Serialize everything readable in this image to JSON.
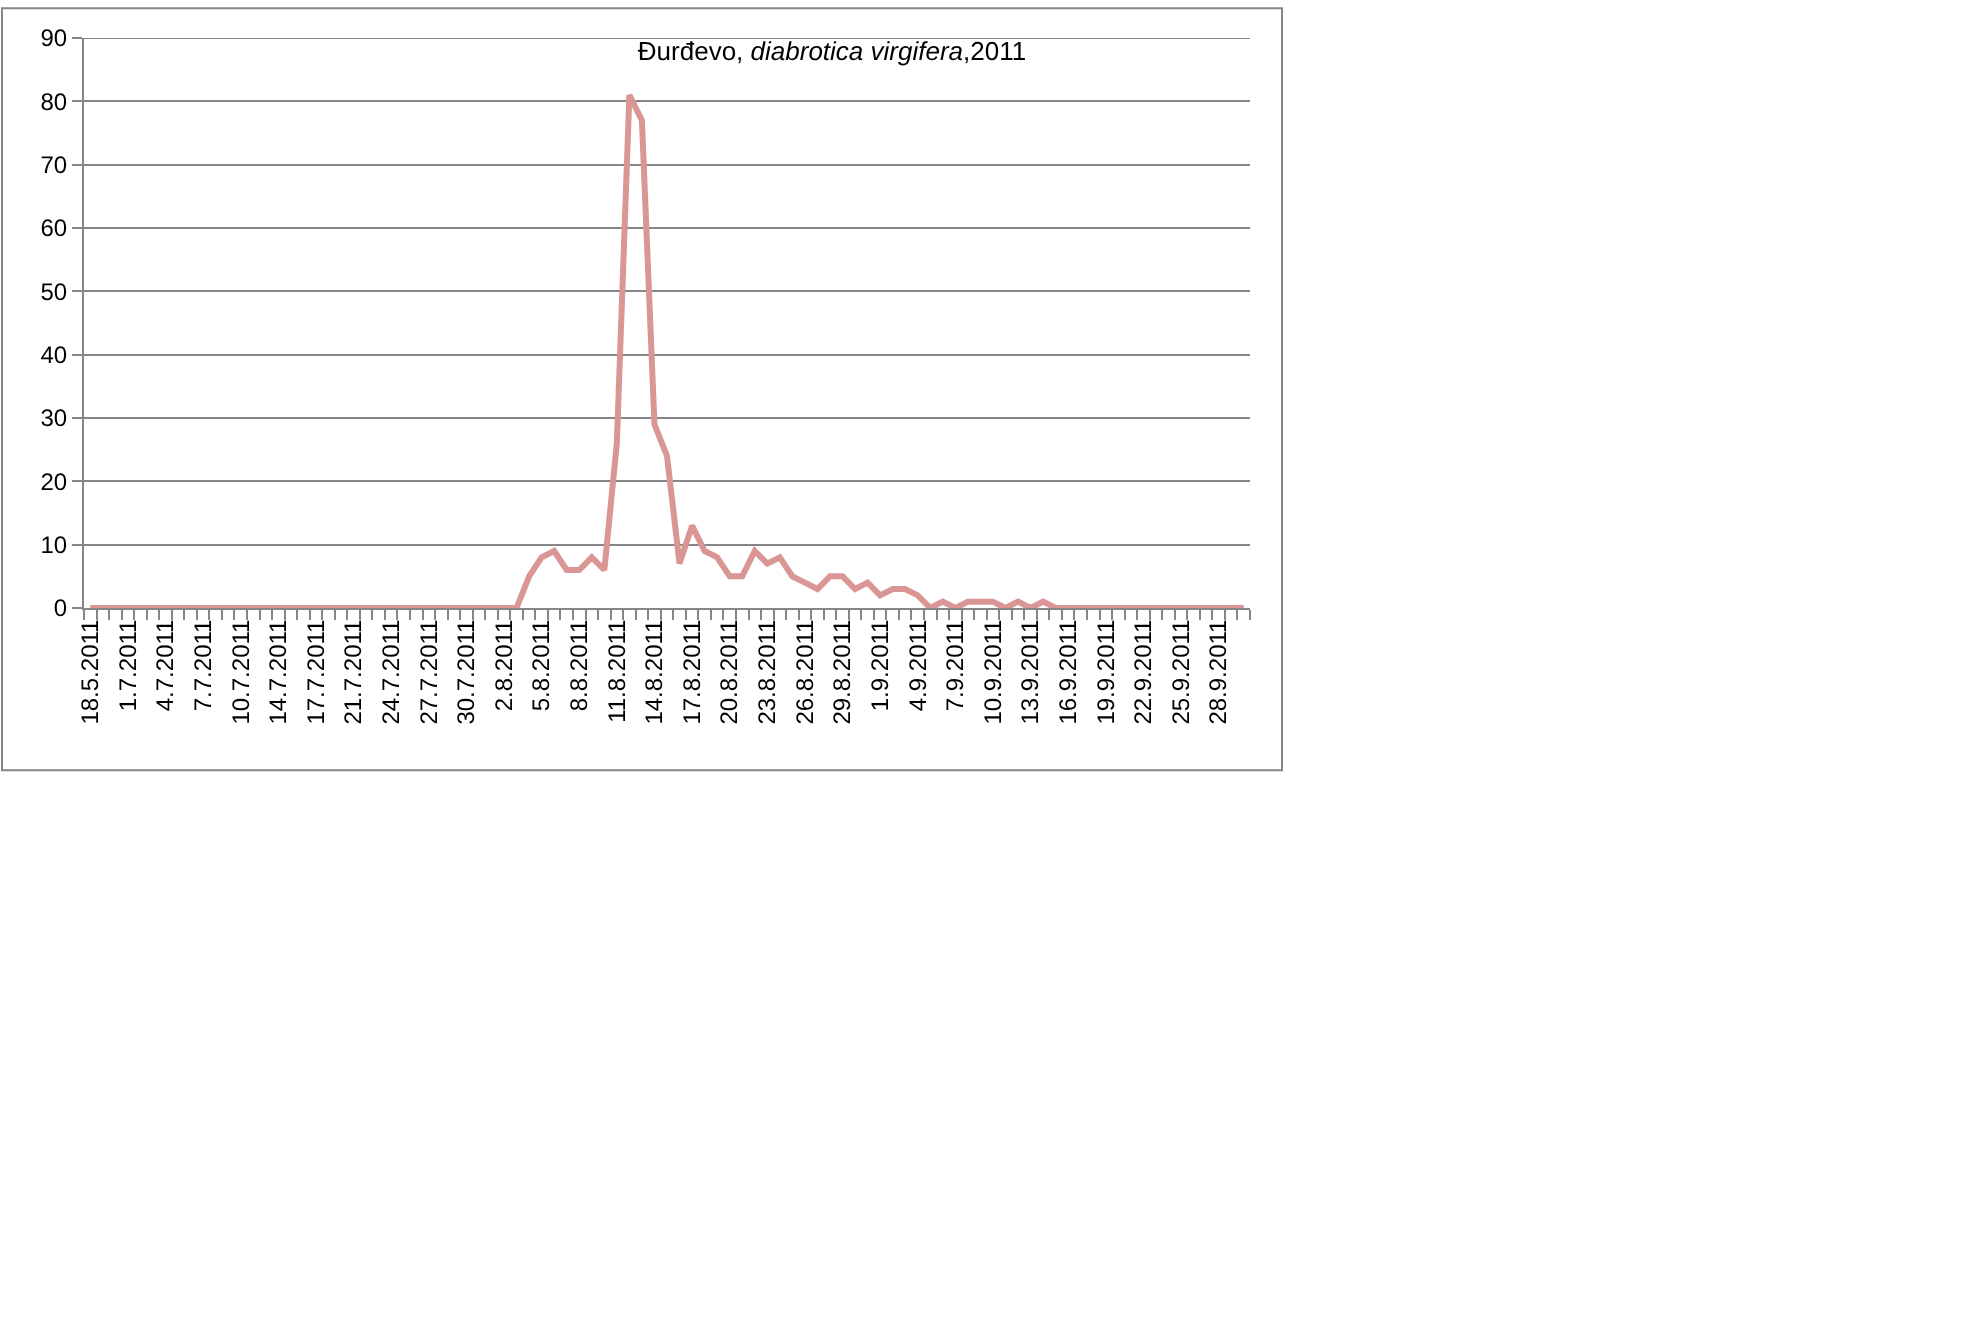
{
  "chart_data": {
    "type": "line",
    "title": "Đurđevo, diabrotica virgifera,2011",
    "categories": [
      "18.5.2011",
      null,
      null,
      "1.7.2011",
      null,
      null,
      "4.7.2011",
      null,
      null,
      "7.7.2011",
      null,
      null,
      "10.7.2011",
      null,
      null,
      "14.7.2011",
      null,
      null,
      "17.7.2011",
      null,
      null,
      "21.7.2011",
      null,
      null,
      "24.7.2011",
      null,
      null,
      "27.7.2011",
      null,
      null,
      "30.7.2011",
      null,
      null,
      "2.8.2011",
      null,
      null,
      "5.8.2011",
      null,
      null,
      "8.8.2011",
      null,
      null,
      "11.8.2011",
      null,
      null,
      "14.8.2011",
      null,
      null,
      "17.8.2011",
      null,
      null,
      "20.8.2011",
      null,
      null,
      "23.8.2011",
      null,
      null,
      "26.8.2011",
      null,
      null,
      "29.8.2011",
      null,
      null,
      "1.9.2011",
      null,
      null,
      "4.9.2011",
      null,
      null,
      "7.9.2011",
      null,
      null,
      "10.9.2011",
      null,
      null,
      "13.9.2011",
      null,
      null,
      "16.9.2011",
      null,
      null,
      "19.9.2011",
      null,
      null,
      "22.9.2011",
      null,
      null,
      "25.9.2011",
      null,
      null,
      "28.9.2011",
      null,
      null
    ],
    "series": [
      {
        "color": "#d99694",
        "values": [
          0,
          0,
          0,
          0,
          0,
          0,
          0,
          0,
          0,
          0,
          0,
          0,
          0,
          0,
          0,
          0,
          0,
          0,
          0,
          0,
          0,
          0,
          0,
          0,
          0,
          0,
          0,
          0,
          0,
          0,
          0,
          0,
          0,
          0,
          0,
          5,
          8,
          9,
          6,
          6,
          8,
          6,
          26,
          81,
          77,
          29,
          24,
          7,
          13,
          9,
          8,
          5,
          5,
          9,
          7,
          8,
          5,
          4,
          3,
          5,
          5,
          3,
          4,
          2,
          3,
          3,
          2,
          0,
          1,
          0,
          1,
          1,
          1,
          0,
          1,
          0,
          1,
          0,
          0,
          0,
          0,
          0,
          0,
          0,
          0,
          0,
          0,
          0,
          0,
          0,
          0,
          0,
          0
        ]
      }
    ],
    "ylim": [
      0,
      90
    ],
    "yticks": [
      0,
      10,
      20,
      30,
      40,
      50,
      60,
      70,
      80,
      90
    ],
    "grid": "y",
    "marker": "none",
    "line_style": "solid"
  }
}
